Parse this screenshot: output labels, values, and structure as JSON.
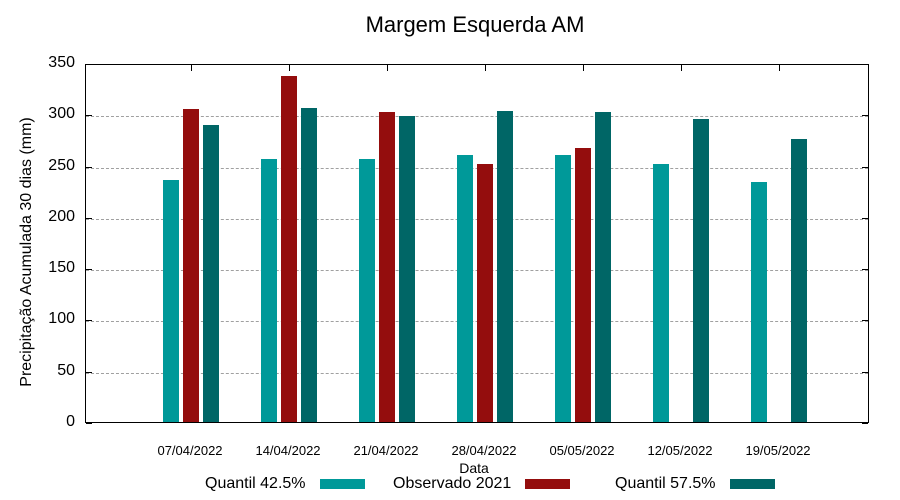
{
  "chart_data": {
    "type": "bar",
    "title": "Margem Esquerda AM",
    "xlabel": "Data",
    "ylabel": "Precipitação Acumulada 30 dias (mm)",
    "ylim": [
      0,
      350
    ],
    "yticks": [
      0,
      50,
      100,
      150,
      200,
      250,
      300,
      350
    ],
    "grid": true,
    "legend_position": "bottom",
    "categories": [
      "07/04/2022",
      "14/04/2022",
      "21/04/2022",
      "28/04/2022",
      "05/05/2022",
      "12/05/2022",
      "19/05/2022"
    ],
    "series": [
      {
        "name": "Quantil 42.5%",
        "color": "#009999",
        "values": [
          236,
          256,
          256,
          260,
          260,
          252,
          234
        ]
      },
      {
        "name": "Observado 2021",
        "color": "#940d0d",
        "values": [
          305,
          337,
          302,
          252,
          267,
          null,
          null
        ]
      },
      {
        "name": "Quantil 57.5%",
        "color": "#006666",
        "values": [
          290,
          306,
          298,
          303,
          302,
          295,
          276
        ]
      }
    ]
  }
}
